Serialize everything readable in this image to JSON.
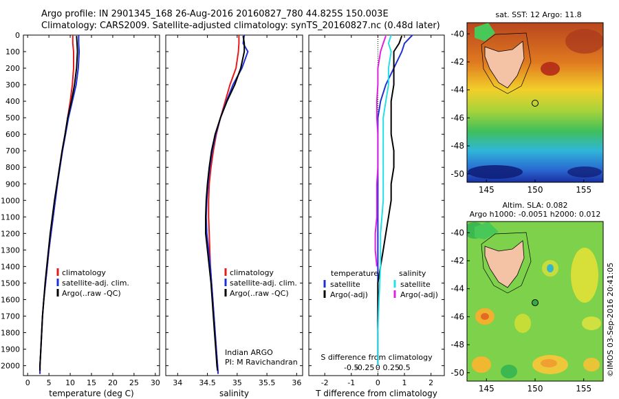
{
  "header": {
    "line1": "Argo profile: IN 2901345_168 26-Aug-2016 20160827_780 44.825S 150.003E",
    "line2": "Climatology: CARS2009. Satellite-adjusted climatology: synTS_20160827.nc (0.48d later)"
  },
  "colors": {
    "climatology": "#e41a1c",
    "satellite": "#1f2fd6",
    "argo": "#000000",
    "salinity_sat": "#22e0e8",
    "salinity_argo": "#e020e0",
    "land": "#f4c3a6",
    "argo_marker": "#3aa845"
  },
  "chart_data": [
    {
      "type": "line",
      "title": "",
      "xlabel": "temperature (deg C)",
      "ylabel": "",
      "xlim": [
        -1,
        31
      ],
      "ylim": [
        2060,
        0
      ],
      "xticks": [
        "0",
        "5",
        "10",
        "15",
        "20",
        "25",
        "30"
      ],
      "yticks": [
        "0",
        "100",
        "200",
        "300",
        "400",
        "500",
        "600",
        "700",
        "800",
        "900",
        "1000",
        "1100",
        "1200",
        "1300",
        "1400",
        "1500",
        "1600",
        "1700",
        "1800",
        "1900",
        "2000"
      ],
      "legend": [
        "climatology",
        "satellite-adj. clim.",
        "Argo(..raw -QC)"
      ],
      "series": [
        {
          "name": "climatology",
          "color_key": "climatology",
          "x": [
            10.6,
            10.6,
            10.8,
            10.8,
            10.5,
            10.0,
            9.4,
            8.8,
            8.1,
            7.5,
            7.0,
            6.5,
            6.0,
            5.5,
            5.0,
            4.6,
            4.2,
            3.8,
            3.5,
            3.3,
            3.1,
            2.9,
            2.9
          ],
          "depth": [
            0,
            50,
            100,
            200,
            300,
            400,
            500,
            600,
            700,
            800,
            900,
            1000,
            1100,
            1200,
            1300,
            1400,
            1500,
            1600,
            1700,
            1800,
            1900,
            2000,
            2050
          ]
        },
        {
          "name": "satellite-adj. clim.",
          "color_key": "satellite",
          "x": [
            12.0,
            12.0,
            12.1,
            11.9,
            11.4,
            10.5,
            9.6,
            8.9,
            8.2,
            7.6,
            7.0,
            6.5,
            6.0,
            5.5,
            5.0,
            4.6,
            4.2,
            3.8,
            3.5,
            3.3,
            3.1,
            2.9,
            2.9
          ],
          "depth": [
            0,
            50,
            100,
            200,
            300,
            400,
            500,
            600,
            700,
            800,
            900,
            1000,
            1100,
            1200,
            1300,
            1400,
            1500,
            1600,
            1700,
            1800,
            1900,
            2000,
            2050
          ]
        },
        {
          "name": "Argo(..raw -QC)",
          "color_key": "argo",
          "x": [
            11.5,
            11.6,
            11.7,
            11.5,
            11.0,
            10.3,
            9.4,
            8.8,
            8.1,
            7.5,
            6.9,
            6.3,
            5.8,
            5.3,
            4.9,
            4.5,
            4.1,
            3.8,
            3.5,
            3.3,
            3.1,
            2.9,
            2.9
          ],
          "depth": [
            5,
            50,
            100,
            200,
            300,
            400,
            500,
            600,
            700,
            800,
            900,
            1000,
            1100,
            1200,
            1300,
            1400,
            1500,
            1600,
            1700,
            1800,
            1900,
            2000,
            2030
          ]
        }
      ]
    },
    {
      "type": "line",
      "title": "",
      "xlabel": "salinity",
      "ylabel": "",
      "xlim": [
        33.8,
        36.1
      ],
      "ylim": [
        2060,
        0
      ],
      "xticks": [
        "34",
        "34.5",
        "35",
        "35.5",
        "36"
      ],
      "legend": [
        "climatology",
        "satellite-adj. clim.",
        "Argo(..raw -QC)"
      ],
      "annotation": [
        "Indian ARGO",
        "PI: M Ravichandran"
      ],
      "series": [
        {
          "name": "climatology",
          "color_key": "climatology",
          "x": [
            35.03,
            35.03,
            35.02,
            34.98,
            34.88,
            34.8,
            34.72,
            34.65,
            34.6,
            34.56,
            34.53,
            34.52,
            34.52,
            34.53,
            34.54,
            34.55,
            34.57,
            34.59,
            34.61,
            34.63,
            34.65,
            34.67,
            34.68
          ],
          "depth": [
            0,
            50,
            100,
            200,
            300,
            400,
            500,
            600,
            700,
            800,
            900,
            1000,
            1100,
            1200,
            1300,
            1400,
            1500,
            1600,
            1700,
            1800,
            1900,
            2000,
            2050
          ]
        },
        {
          "name": "satellite-adj. clim.",
          "color_key": "satellite",
          "x": [
            35.12,
            35.1,
            35.18,
            35.08,
            34.93,
            34.82,
            34.72,
            34.64,
            34.58,
            34.54,
            34.51,
            34.49,
            34.48,
            34.49,
            34.52,
            34.55,
            34.57,
            34.59,
            34.61,
            34.63,
            34.65,
            34.67,
            34.68
          ],
          "depth": [
            0,
            50,
            100,
            200,
            300,
            400,
            500,
            600,
            700,
            800,
            900,
            1000,
            1100,
            1200,
            1300,
            1400,
            1500,
            1600,
            1700,
            1800,
            1900,
            2000,
            2050
          ]
        },
        {
          "name": "Argo(..raw -QC)",
          "color_key": "argo",
          "x": [
            35.1,
            35.12,
            35.12,
            35.06,
            34.96,
            34.83,
            34.72,
            34.63,
            34.57,
            34.53,
            34.5,
            34.48,
            34.47,
            34.47,
            34.5,
            34.53,
            34.56,
            34.58,
            34.6,
            34.62,
            34.64,
            34.66,
            34.67
          ],
          "depth": [
            5,
            50,
            100,
            200,
            300,
            400,
            500,
            600,
            700,
            800,
            900,
            1000,
            1100,
            1200,
            1300,
            1400,
            1500,
            1600,
            1700,
            1800,
            1900,
            2000,
            2030
          ]
        }
      ]
    },
    {
      "type": "line",
      "title": "",
      "xlabel": "T difference from climatology",
      "top_xlabel": "S difference from climatology",
      "xlim": [
        -2.6,
        2.5
      ],
      "ylim": [
        2060,
        0
      ],
      "xticks": [
        "-2",
        "-1",
        "0",
        "1",
        "2"
      ],
      "top_xticks": [
        "-0.5",
        "-0.25",
        "0",
        "0.25",
        "0.5"
      ],
      "legend_headers": [
        "temperature",
        "salinity"
      ],
      "legend": [
        "satellite",
        "Argo(-adj)",
        "satellite",
        "Argo(-adj)"
      ],
      "series": [
        {
          "name": "temperature satellite",
          "color_key": "satellite",
          "x": [
            1.3,
            1.0,
            0.9,
            0.6,
            0.3,
            0.1,
            0.0,
            0.0,
            0.0,
            0.0,
            0.0,
            0.0,
            0.0,
            0.0,
            0.0,
            0.0,
            0.0,
            0.0,
            0.0,
            0.0
          ],
          "depth": [
            0,
            50,
            100,
            200,
            300,
            400,
            500,
            600,
            700,
            800,
            900,
            1000,
            1200,
            1400,
            1500,
            1600,
            1700,
            1800,
            1900,
            2000
          ]
        },
        {
          "name": "temperature Argo(-adj)",
          "color_key": "argo",
          "x": [
            0.9,
            0.8,
            0.6,
            0.6,
            0.6,
            0.5,
            0.5,
            0.5,
            0.6,
            0.6,
            0.5,
            0.5,
            0.4,
            0.3,
            0.2,
            0.1,
            0.0,
            0.0,
            0.0
          ],
          "depth": [
            5,
            50,
            100,
            200,
            300,
            400,
            500,
            600,
            700,
            800,
            900,
            1000,
            1100,
            1200,
            1300,
            1400,
            1500,
            1700,
            2000
          ]
        },
        {
          "name": "salinity satellite",
          "color_key": "salinity_sat",
          "x": [
            0.25,
            0.2,
            0.25,
            0.2,
            0.2,
            0.15,
            0.1,
            0.1,
            0.1,
            0.1,
            0.1,
            0.05,
            0.05,
            0.02,
            0.0,
            0.0
          ],
          "depth": [
            0,
            50,
            100,
            200,
            300,
            400,
            500,
            600,
            700,
            800,
            1000,
            1200,
            1400,
            1600,
            1800,
            2000
          ]
        },
        {
          "name": "salinity Argo(-adj)",
          "color_key": "salinity_argo",
          "x": [
            0.15,
            0.1,
            0.05,
            0.0,
            0.0,
            -0.02,
            -0.02,
            0.0,
            0.0,
            0.0,
            -0.02,
            -0.02,
            -0.02,
            -0.05,
            -0.05,
            -0.02
          ],
          "depth": [
            5,
            50,
            100,
            200,
            300,
            400,
            500,
            600,
            700,
            800,
            900,
            1000,
            1100,
            1200,
            1300,
            1400
          ]
        }
      ]
    },
    {
      "type": "heatmap",
      "title": "sat. SST: 12 Argo: 11.8",
      "xlim": [
        143,
        157
      ],
      "ylim": [
        -50.6,
        -39.2
      ],
      "xticks": [
        "145",
        "150",
        "155"
      ],
      "yticks": [
        "-40",
        "-42",
        "-44",
        "-46",
        "-48",
        "-50"
      ],
      "argo_position": [
        150.0,
        -44.8
      ]
    },
    {
      "type": "heatmap",
      "title_line1": "Altim. SLA: 0.082",
      "title_line2": "Argo h1000: -0.0051 h2000: 0.012",
      "xlim": [
        143,
        157
      ],
      "ylim": [
        -50.6,
        -39.2
      ],
      "xticks": [
        "145",
        "150",
        "155"
      ],
      "yticks": [
        "-40",
        "-42",
        "-44",
        "-46",
        "-48",
        "-50"
      ],
      "argo_position": [
        150.0,
        -44.8
      ]
    }
  ],
  "footer_stamp": "©IMOS 03-Sep-2016 20:41:05"
}
